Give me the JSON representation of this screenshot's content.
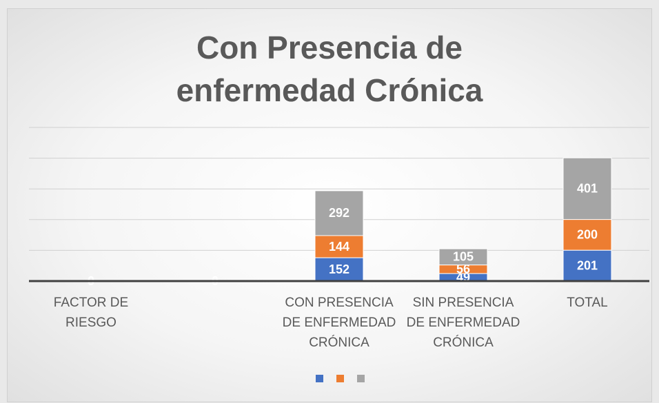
{
  "chart_data": {
    "type": "stacked_bar",
    "title": "Con Presencia de enfermedad Crónica",
    "categories": [
      "FACTOR DE RIESGO",
      null,
      "CON PRESENCIA DE ENFERMEDAD CRÓNICA",
      "SIN PRESENCIA DE ENFERMEDAD CRÓNICA",
      "TOTAL"
    ],
    "series": [
      {
        "color": "#4472c4",
        "values": [
          0,
          0,
          152,
          49,
          201
        ]
      },
      {
        "color": "#ed7d31",
        "values": [
          0,
          0,
          144,
          56,
          200
        ]
      },
      {
        "color": "#a5a5a5",
        "values": [
          0,
          0,
          292,
          105,
          401
        ]
      }
    ],
    "ylim": [
      0,
      1000
    ],
    "yticks": [
      0,
      200,
      400,
      600,
      800,
      1000
    ],
    "grid": true,
    "legend": "bottom"
  }
}
